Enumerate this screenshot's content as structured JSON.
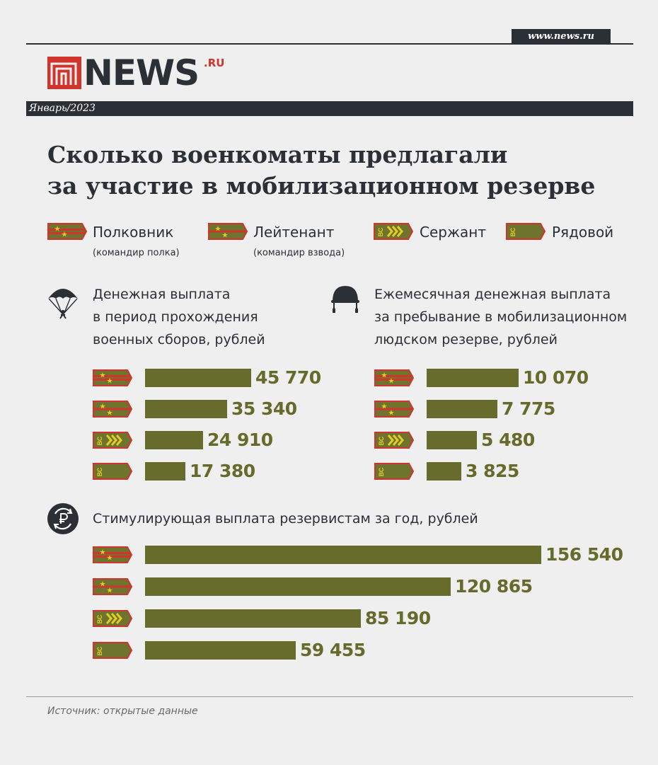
{
  "header": {
    "site_url": "www.news.ru",
    "logo_text": "NEWS",
    "logo_suffix": ".RU",
    "date": "Январь/2023"
  },
  "title_lines": [
    "Сколько военкоматы предлагали",
    "за участие в мобилизационном резерве"
  ],
  "legend": [
    {
      "rank": "colonel",
      "label": "Полковник",
      "sub": "(командир полка)"
    },
    {
      "rank": "lieutenant",
      "label": "Лейтенант",
      "sub": "(командир взвода)"
    },
    {
      "rank": "sergeant",
      "label": "Сержант",
      "sub": ""
    },
    {
      "rank": "private",
      "label": "Рядовой",
      "sub": ""
    }
  ],
  "insignia_text": "ВС",
  "colors": {
    "bar": "#676b2c",
    "value": "#666a2b",
    "dark": "#2b2f36",
    "accent_red": "#d0342c",
    "strap_green": "#6e742e",
    "chevron_yellow": "#e2cc26"
  },
  "sections": [
    {
      "icon": "parachute-icon",
      "lines": [
        "Денежная выплата",
        "в период прохождения",
        "военных сборов, рублей"
      ]
    },
    {
      "icon": "helmet-icon",
      "lines": [
        "Ежемесячная денежная выплата",
        "за пребывание в мобилизационном",
        "людском резерве, рублей"
      ]
    },
    {
      "icon": "rouble-cycle-icon",
      "lines": [
        "Стимулирующая выплата резервистам за год, рублей"
      ]
    }
  ],
  "footer": {
    "source": "Источник: открытые данные"
  },
  "chart_data": [
    {
      "type": "bar",
      "orientation": "horizontal",
      "title": "Денежная выплата в период прохождения военных сборов, рублей",
      "categories": [
        "Полковник",
        "Лейтенант",
        "Сержант",
        "Рядовой"
      ],
      "values": [
        45770,
        35340,
        24910,
        17380
      ],
      "labels": [
        "45 770",
        "35 340",
        "24 910",
        "17 380"
      ]
    },
    {
      "type": "bar",
      "orientation": "horizontal",
      "title": "Ежемесячная денежная выплата за пребывание в мобилизационном людском резерве, рублей",
      "categories": [
        "Полковник",
        "Лейтенант",
        "Сержант",
        "Рядовой"
      ],
      "values": [
        10070,
        7775,
        5480,
        3825
      ],
      "labels": [
        "10 070",
        "7 775",
        "5 480",
        "3 825"
      ]
    },
    {
      "type": "bar",
      "orientation": "horizontal",
      "title": "Стимулирующая выплата резервистам за год, рублей",
      "categories": [
        "Полковник",
        "Лейтенант",
        "Сержант",
        "Рядовой"
      ],
      "values": [
        156540,
        120865,
        85190,
        59455
      ],
      "labels": [
        "156 540",
        "120 865",
        "85 190",
        "59 455"
      ]
    }
  ]
}
